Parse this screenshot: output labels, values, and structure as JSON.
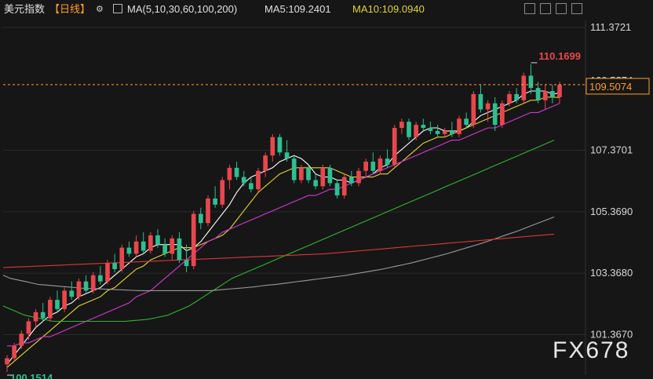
{
  "header": {
    "symbol": "美元指数",
    "period": "【日线】",
    "ma_label": "MA(5,10,30,60,100,200)",
    "ma5_label": "MA5:109.2401",
    "ma10_label": "MA10:109.0940"
  },
  "watermark": "FX678",
  "colors": {
    "up": "#e8474e",
    "down": "#2fbf91",
    "ma5": "#ffffff",
    "ma10": "#e2d33a",
    "ma30": "#d23ad2",
    "ma60": "#2fb52f",
    "ma100": "#9a9a9a",
    "ma200": "#d83a3a",
    "current": "#ff9f2f",
    "grid": "#2a2a2a"
  },
  "chart_data": {
    "type": "candlestick",
    "ylim": [
      100.05,
      111.6
    ],
    "y_ticks": [
      "111.3721",
      "107.3701",
      "105.3690",
      "103.3680",
      "101.3670"
    ],
    "y_tick_values": [
      111.3721,
      107.3701,
      105.369,
      103.368,
      101.367
    ],
    "axis_label_extra": "109.5?74",
    "current_price": "109.5074",
    "current_value": 109.5074,
    "high_label": "110.1699",
    "high_value": 110.1699,
    "low_label": "100.1514",
    "low_value": 100.1514,
    "candles": [
      [
        100.4,
        100.7,
        100.15,
        100.6
      ],
      [
        100.6,
        101.1,
        100.5,
        101.0
      ],
      [
        101.0,
        101.5,
        100.9,
        101.4
      ],
      [
        101.4,
        101.9,
        101.2,
        101.8
      ],
      [
        101.8,
        102.2,
        101.6,
        102.1
      ],
      [
        102.1,
        102.4,
        101.8,
        101.9
      ],
      [
        101.9,
        102.6,
        101.8,
        102.5
      ],
      [
        102.5,
        102.8,
        102.1,
        102.2
      ],
      [
        102.2,
        102.9,
        102.1,
        102.8
      ],
      [
        102.8,
        103.1,
        102.5,
        102.6
      ],
      [
        102.6,
        103.2,
        102.5,
        103.1
      ],
      [
        103.1,
        103.3,
        102.7,
        102.8
      ],
      [
        102.8,
        103.4,
        102.7,
        103.3
      ],
      [
        103.3,
        103.6,
        103.0,
        103.1
      ],
      [
        103.1,
        103.8,
        103.0,
        103.7
      ],
      [
        103.7,
        104.0,
        103.4,
        103.5
      ],
      [
        103.5,
        104.3,
        103.4,
        104.2
      ],
      [
        104.2,
        104.4,
        103.9,
        104.0
      ],
      [
        104.0,
        104.6,
        103.9,
        104.4
      ],
      [
        104.4,
        104.7,
        104.0,
        104.1
      ],
      [
        104.1,
        104.7,
        104.0,
        104.6
      ],
      [
        104.6,
        104.8,
        104.2,
        104.3
      ],
      [
        104.3,
        104.5,
        103.9,
        104.0
      ],
      [
        104.0,
        104.6,
        103.8,
        104.5
      ],
      [
        104.5,
        104.7,
        103.7,
        103.8
      ],
      [
        103.8,
        104.3,
        103.4,
        103.6
      ],
      [
        103.6,
        105.4,
        103.5,
        105.3
      ],
      [
        105.3,
        105.5,
        104.8,
        105.0
      ],
      [
        105.0,
        105.9,
        104.9,
        105.8
      ],
      [
        105.8,
        106.2,
        105.5,
        105.6
      ],
      [
        105.6,
        106.5,
        105.5,
        106.4
      ],
      [
        106.4,
        106.9,
        106.1,
        106.8
      ],
      [
        106.8,
        107.0,
        106.4,
        106.5
      ],
      [
        106.5,
        106.7,
        106.2,
        106.3
      ],
      [
        106.3,
        106.5,
        106.0,
        106.1
      ],
      [
        106.1,
        106.8,
        106.0,
        106.7
      ],
      [
        106.7,
        107.3,
        106.5,
        107.2
      ],
      [
        107.2,
        107.9,
        107.0,
        107.8
      ],
      [
        107.8,
        107.9,
        107.2,
        107.3
      ],
      [
        107.3,
        107.7,
        107.0,
        107.1
      ],
      [
        107.1,
        107.2,
        106.3,
        106.4
      ],
      [
        106.4,
        106.9,
        106.3,
        106.8
      ],
      [
        106.8,
        106.9,
        106.3,
        106.4
      ],
      [
        106.4,
        106.6,
        106.1,
        106.2
      ],
      [
        106.2,
        106.9,
        106.1,
        106.8
      ],
      [
        106.8,
        106.9,
        106.2,
        106.3
      ],
      [
        106.3,
        106.4,
        105.8,
        105.9
      ],
      [
        105.9,
        106.6,
        105.8,
        106.5
      ],
      [
        106.5,
        106.7,
        106.2,
        106.3
      ],
      [
        106.3,
        106.8,
        106.2,
        106.7
      ],
      [
        106.7,
        107.1,
        106.5,
        107.0
      ],
      [
        107.0,
        107.3,
        106.6,
        106.7
      ],
      [
        106.7,
        107.2,
        106.6,
        107.1
      ],
      [
        107.1,
        107.4,
        106.8,
        106.9
      ],
      [
        106.9,
        108.2,
        106.8,
        108.1
      ],
      [
        108.1,
        108.4,
        107.9,
        108.3
      ],
      [
        108.3,
        108.4,
        107.7,
        107.8
      ],
      [
        107.8,
        108.3,
        107.7,
        108.2
      ],
      [
        108.2,
        108.4,
        108.0,
        108.1
      ],
      [
        108.1,
        108.3,
        107.9,
        108.0
      ],
      [
        108.0,
        108.2,
        107.8,
        107.9
      ],
      [
        107.9,
        108.1,
        107.8,
        108.0
      ],
      [
        108.0,
        108.3,
        107.8,
        107.9
      ],
      [
        107.9,
        108.5,
        107.8,
        108.4
      ],
      [
        108.4,
        108.6,
        108.1,
        108.2
      ],
      [
        108.2,
        109.3,
        108.1,
        109.2
      ],
      [
        109.2,
        109.5,
        108.6,
        108.7
      ],
      [
        108.7,
        109.0,
        108.3,
        108.9
      ],
      [
        108.9,
        109.1,
        108.0,
        108.2
      ],
      [
        108.2,
        109.0,
        108.1,
        108.9
      ],
      [
        108.9,
        109.3,
        108.8,
        109.2
      ],
      [
        109.2,
        109.4,
        108.9,
        109.0
      ],
      [
        109.0,
        109.9,
        108.9,
        109.8
      ],
      [
        109.8,
        110.17,
        109.2,
        109.4
      ],
      [
        109.4,
        109.6,
        108.9,
        109.0
      ],
      [
        109.0,
        109.5,
        108.7,
        109.3
      ],
      [
        109.3,
        109.5,
        108.9,
        109.1
      ],
      [
        109.1,
        109.6,
        108.9,
        109.5
      ]
    ],
    "ma_series": [
      {
        "name": "MA5",
        "color_key": "ma5",
        "values": [
          100.4,
          100.7,
          101.0,
          101.3,
          101.6,
          101.8,
          102.0,
          102.1,
          102.3,
          102.4,
          102.6,
          102.7,
          102.8,
          102.9,
          103.1,
          103.3,
          103.5,
          103.7,
          103.9,
          104.0,
          104.2,
          104.3,
          104.3,
          104.3,
          104.3,
          104.1,
          104.2,
          104.4,
          104.7,
          105.0,
          105.3,
          105.6,
          106.0,
          106.3,
          106.5,
          106.6,
          106.7,
          106.8,
          107.0,
          107.1,
          107.2,
          107.1,
          106.9,
          106.6,
          106.5,
          106.5,
          106.4,
          106.4,
          106.3,
          106.4,
          106.5,
          106.6,
          106.8,
          106.9,
          107.2,
          107.4,
          107.6,
          107.8,
          108.0,
          108.1,
          108.1,
          108.0,
          108.0,
          108.0,
          108.1,
          108.3,
          108.5,
          108.6,
          108.7,
          108.8,
          108.9,
          109.0,
          109.2,
          109.3,
          109.3,
          109.3,
          109.2,
          109.24
        ]
      },
      {
        "name": "MA10",
        "color_key": "ma10",
        "values": [
          100.3,
          100.5,
          100.7,
          100.9,
          101.1,
          101.3,
          101.5,
          101.7,
          101.9,
          102.1,
          102.3,
          102.4,
          102.5,
          102.6,
          102.8,
          102.9,
          103.1,
          103.3,
          103.5,
          103.6,
          103.8,
          103.9,
          104.0,
          104.1,
          104.2,
          104.2,
          104.2,
          104.3,
          104.4,
          104.5,
          104.6,
          104.8,
          105.1,
          105.4,
          105.7,
          106.0,
          106.2,
          106.4,
          106.6,
          106.7,
          106.8,
          106.8,
          106.8,
          106.8,
          106.8,
          106.8,
          106.7,
          106.6,
          106.5,
          106.5,
          106.5,
          106.5,
          106.6,
          106.6,
          106.8,
          107.0,
          107.2,
          107.4,
          107.6,
          107.7,
          107.8,
          107.8,
          107.9,
          108.0,
          108.1,
          108.2,
          108.3,
          108.4,
          108.5,
          108.6,
          108.7,
          108.8,
          108.9,
          109.0,
          109.0,
          109.1,
          109.1,
          109.09
        ]
      },
      {
        "name": "MA30",
        "color_key": "ma30",
        "values": [
          101.0,
          101.0,
          101.1,
          101.1,
          101.2,
          101.3,
          101.3,
          101.4,
          101.5,
          101.6,
          101.7,
          101.8,
          101.9,
          102.0,
          102.1,
          102.2,
          102.3,
          102.4,
          102.6,
          102.7,
          102.8,
          103.0,
          103.2,
          103.4,
          103.6,
          103.8,
          104.0,
          104.2,
          104.4,
          104.5,
          104.7,
          104.8,
          104.9,
          105.0,
          105.1,
          105.2,
          105.3,
          105.4,
          105.5,
          105.6,
          105.7,
          105.8,
          105.9,
          105.9,
          106.0,
          106.1,
          106.1,
          106.2,
          106.3,
          106.4,
          106.5,
          106.6,
          106.7,
          106.8,
          106.9,
          107.0,
          107.1,
          107.2,
          107.3,
          107.4,
          107.5,
          107.6,
          107.7,
          107.7,
          107.8,
          107.9,
          108.0,
          108.1,
          108.1,
          108.2,
          108.3,
          108.4,
          108.5,
          108.6,
          108.6,
          108.7,
          108.8,
          108.9
        ]
      },
      {
        "name": "MA60",
        "color_key": "ma60",
        "values": [
          102.3,
          102.2,
          102.1,
          102.0,
          101.95,
          101.9,
          101.85,
          101.8,
          101.8,
          101.8,
          101.8,
          101.8,
          101.8,
          101.8,
          101.8,
          101.8,
          101.8,
          101.8,
          101.82,
          101.84,
          101.86,
          101.9,
          101.95,
          102.0,
          102.1,
          102.2,
          102.3,
          102.45,
          102.6,
          102.75,
          102.9,
          103.05,
          103.2,
          103.3,
          103.4,
          103.5,
          103.6,
          103.7,
          103.8,
          103.9,
          104.0,
          104.1,
          104.2,
          104.3,
          104.4,
          104.5,
          104.6,
          104.7,
          104.8,
          104.9,
          105.0,
          105.1,
          105.2,
          105.3,
          105.4,
          105.5,
          105.6,
          105.7,
          105.8,
          105.9,
          106.0,
          106.1,
          106.2,
          106.3,
          106.4,
          106.5,
          106.6,
          106.7,
          106.8,
          106.9,
          107.0,
          107.1,
          107.2,
          107.3,
          107.4,
          107.5,
          107.6,
          107.7
        ]
      },
      {
        "name": "MA100",
        "color_key": "ma100",
        "values": [
          103.3,
          103.2,
          103.15,
          103.1,
          103.05,
          103.0,
          102.98,
          102.96,
          102.94,
          102.92,
          102.9,
          102.88,
          102.87,
          102.86,
          102.85,
          102.84,
          102.83,
          102.82,
          102.81,
          102.8,
          102.8,
          102.8,
          102.8,
          102.8,
          102.8,
          102.8,
          102.8,
          102.8,
          102.8,
          102.8,
          102.82,
          102.84,
          102.86,
          102.88,
          102.9,
          102.92,
          102.95,
          102.98,
          103.0,
          103.03,
          103.06,
          103.09,
          103.12,
          103.15,
          103.18,
          103.21,
          103.24,
          103.27,
          103.3,
          103.34,
          103.38,
          103.42,
          103.46,
          103.5,
          103.55,
          103.6,
          103.65,
          103.7,
          103.76,
          103.82,
          103.88,
          103.94,
          104.0,
          104.07,
          104.14,
          104.21,
          104.28,
          104.35,
          104.43,
          104.51,
          104.59,
          104.67,
          104.75,
          104.84,
          104.93,
          105.02,
          105.11,
          105.2
        ]
      },
      {
        "name": "MA200",
        "color_key": "ma200",
        "values": [
          103.55,
          103.56,
          103.57,
          103.58,
          103.59,
          103.6,
          103.61,
          103.62,
          103.63,
          103.64,
          103.65,
          103.66,
          103.67,
          103.68,
          103.69,
          103.7,
          103.71,
          103.72,
          103.73,
          103.74,
          103.75,
          103.76,
          103.77,
          103.78,
          103.79,
          103.8,
          103.81,
          103.82,
          103.83,
          103.84,
          103.85,
          103.86,
          103.87,
          103.88,
          103.89,
          103.9,
          103.91,
          103.92,
          103.93,
          103.94,
          103.95,
          103.96,
          103.97,
          103.98,
          103.99,
          104.0,
          104.02,
          104.04,
          104.06,
          104.08,
          104.1,
          104.12,
          104.14,
          104.16,
          104.18,
          104.2,
          104.22,
          104.24,
          104.26,
          104.28,
          104.3,
          104.32,
          104.34,
          104.36,
          104.38,
          104.4,
          104.42,
          104.44,
          104.46,
          104.48,
          104.5,
          104.52,
          104.54,
          104.56,
          104.58,
          104.6,
          104.62,
          104.64
        ]
      }
    ]
  }
}
